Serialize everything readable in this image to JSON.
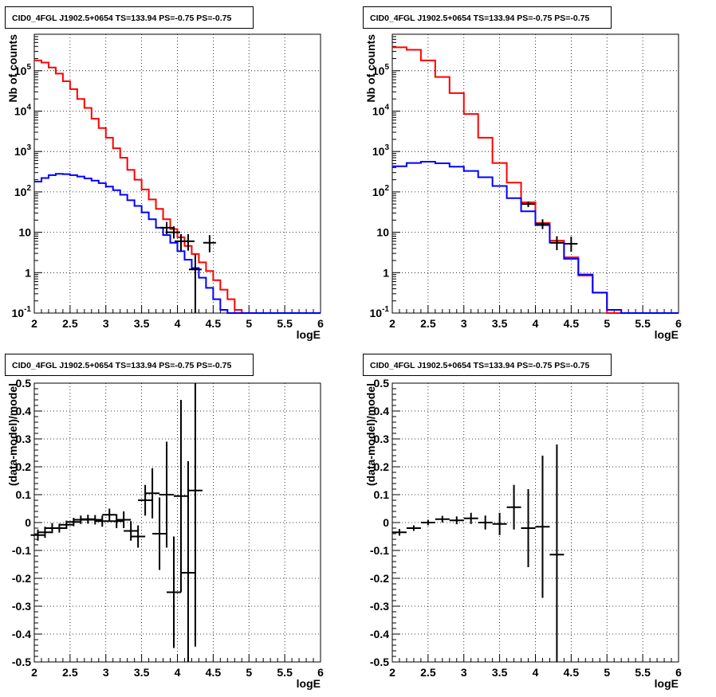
{
  "chart_data": [
    {
      "type": "histogram",
      "title": "CID0_4FGL J1902.5+0654 TS=133.94 PS=-0.75 PS=-0.75",
      "xlabel": "logE",
      "ylabel": "Nb of counts",
      "xlim": [
        2,
        6
      ],
      "ylim": [
        0.1,
        800000
      ],
      "yscale": "log",
      "grid": true,
      "x_ticks": [
        "2",
        "2.5",
        "3",
        "3.5",
        "4",
        "4.5",
        "5",
        "5.5",
        "6"
      ],
      "y_ticks": [
        "10^-1",
        "1",
        "10",
        "10^2",
        "10^3",
        "10^4",
        "10^5"
      ],
      "series": [
        {
          "color": "#ff0000",
          "bin_edges": [
            2.0,
            2.1,
            2.2,
            2.3,
            2.4,
            2.5,
            2.6,
            2.7,
            2.8,
            2.9,
            3.0,
            3.1,
            3.2,
            3.3,
            3.4,
            3.5,
            3.6,
            3.7,
            3.8,
            3.9,
            4.0,
            4.1,
            4.2,
            4.3,
            4.4,
            4.5,
            4.6,
            4.7,
            4.8,
            4.9,
            5.0,
            5.1,
            5.2,
            5.3,
            5.4,
            5.5,
            5.6,
            5.7,
            5.8,
            5.9,
            6.0
          ],
          "values": [
            180000,
            160000,
            120000,
            85000,
            55000,
            35000,
            20000,
            12000,
            6500,
            3800,
            2200,
            1200,
            700,
            350,
            200,
            115,
            65,
            38,
            21,
            12,
            7.5,
            4.6,
            2.9,
            1.8,
            1.1,
            0.65,
            0.38,
            0.22,
            0.12,
            0.1,
            0.1,
            0.1,
            0.1,
            0.1,
            0.1,
            0.1,
            0.1,
            0.1,
            0.1,
            0.1
          ]
        },
        {
          "color": "#0000ff",
          "bin_edges": [
            2.0,
            2.1,
            2.2,
            2.3,
            2.4,
            2.5,
            2.6,
            2.7,
            2.8,
            2.9,
            3.0,
            3.1,
            3.2,
            3.3,
            3.4,
            3.5,
            3.6,
            3.7,
            3.8,
            3.9,
            4.0,
            4.1,
            4.2,
            4.3,
            4.4,
            4.5,
            4.6,
            4.7,
            4.8,
            4.9,
            5.0,
            5.1,
            5.2,
            5.3,
            5.4,
            5.5,
            5.6,
            5.7,
            5.8,
            5.9,
            6.0
          ],
          "values": [
            180,
            220,
            260,
            280,
            275,
            260,
            240,
            215,
            190,
            165,
            135,
            110,
            85,
            62,
            45,
            31,
            21,
            13,
            8.5,
            5.5,
            3.4,
            2.1,
            1.3,
            0.75,
            0.42,
            0.22,
            0.12,
            0.1,
            0.1,
            0.1,
            0.1,
            0.1,
            0.1,
            0.1,
            0.1,
            0.1,
            0.1,
            0.1,
            0.1,
            0.1
          ]
        },
        {
          "color": "#000000",
          "style": "points",
          "points": [
            {
              "x": 3.85,
              "y": 13,
              "ylo": 9,
              "yhi": 18
            },
            {
              "x": 3.95,
              "y": 10,
              "ylo": 7,
              "yhi": 14
            },
            {
              "x": 4.05,
              "y": 6,
              "ylo": 3.5,
              "yhi": 9
            },
            {
              "x": 4.15,
              "y": 6,
              "ylo": 3.5,
              "yhi": 9
            },
            {
              "x": 4.25,
              "y": 1.2,
              "ylo": 0.1,
              "yhi": 2.8
            },
            {
              "x": 4.45,
              "y": 5.5,
              "ylo": 3.2,
              "yhi": 8.5
            }
          ]
        }
      ]
    },
    {
      "type": "histogram",
      "title": "CID0_4FGL J1902.5+0654 TS=133.94 PS=-0.75 PS=-0.75",
      "xlabel": "logE",
      "ylabel": "Nb of counts",
      "xlim": [
        2,
        6
      ],
      "ylim": [
        0.1,
        800000
      ],
      "yscale": "log",
      "grid": true,
      "x_ticks": [
        "2",
        "2.5",
        "3",
        "3.5",
        "4",
        "4.5",
        "5",
        "5.5",
        "6"
      ],
      "y_ticks": [
        "10^-1",
        "1",
        "10",
        "10^2",
        "10^3",
        "10^4",
        "10^5"
      ],
      "series": [
        {
          "color": "#ff0000",
          "bin_edges": [
            2.0,
            2.2,
            2.4,
            2.6,
            2.8,
            3.0,
            3.2,
            3.4,
            3.6,
            3.8,
            4.0,
            4.2,
            4.4,
            4.6,
            4.8,
            5.0,
            5.2,
            5.4,
            5.6,
            5.8,
            6.0
          ],
          "values": [
            380000,
            330000,
            180000,
            70000,
            28000,
            8500,
            2200,
            520,
            170,
            55,
            17,
            6.2,
            2.4,
            0.85,
            0.32,
            0.1,
            0.1,
            0.1,
            0.1,
            0.1
          ]
        },
        {
          "color": "#0000ff",
          "bin_edges": [
            2.0,
            2.2,
            2.4,
            2.6,
            2.8,
            3.0,
            3.2,
            3.4,
            3.6,
            3.8,
            4.0,
            4.2,
            4.4,
            4.6,
            4.8,
            5.0,
            5.2,
            5.4,
            5.6,
            5.8,
            6.0
          ],
          "values": [
            430,
            520,
            560,
            510,
            420,
            330,
            230,
            140,
            70,
            33,
            15,
            5.5,
            2.2,
            0.9,
            0.32,
            0.12,
            0.1,
            0.1,
            0.1,
            0.1
          ]
        },
        {
          "color": "#000000",
          "style": "points",
          "points": [
            {
              "x": 3.9,
              "y": 50,
              "ylo": 42,
              "yhi": 58
            },
            {
              "x": 4.1,
              "y": 16,
              "ylo": 12,
              "yhi": 21
            },
            {
              "x": 4.3,
              "y": 5.5,
              "ylo": 3.6,
              "yhi": 8
            },
            {
              "x": 4.5,
              "y": 5.2,
              "ylo": 3.3,
              "yhi": 7.8
            }
          ]
        }
      ]
    },
    {
      "type": "scatter",
      "title": "CID0_4FGL J1902.5+0654 TS=133.94 PS=-0.75 PS=-0.75",
      "xlabel": "logE",
      "ylabel": "(data-model)/model",
      "xlim": [
        2,
        6
      ],
      "ylim": [
        -0.5,
        0.5
      ],
      "yscale": "linear",
      "grid": true,
      "x_ticks": [
        "2",
        "2.5",
        "3",
        "3.5",
        "4",
        "4.5",
        "5",
        "5.5",
        "6"
      ],
      "y_ticks": [
        "-0.5",
        "-0.4",
        "-0.3",
        "-0.2",
        "-0.1",
        "0",
        "0.1",
        "0.2",
        "0.3",
        "0.4",
        "0.5"
      ],
      "series": [
        {
          "color": "#000000",
          "points": [
            {
              "x": 2.05,
              "y": -0.045,
              "err": 0.02
            },
            {
              "x": 2.15,
              "y": -0.035,
              "err": 0.02
            },
            {
              "x": 2.25,
              "y": -0.02,
              "err": 0.018
            },
            {
              "x": 2.35,
              "y": -0.02,
              "err": 0.016
            },
            {
              "x": 2.45,
              "y": -0.008,
              "err": 0.015
            },
            {
              "x": 2.55,
              "y": 0.002,
              "err": 0.015
            },
            {
              "x": 2.65,
              "y": 0.01,
              "err": 0.015
            },
            {
              "x": 2.75,
              "y": 0.012,
              "err": 0.016
            },
            {
              "x": 2.85,
              "y": 0.01,
              "err": 0.017
            },
            {
              "x": 2.95,
              "y": 0.005,
              "err": 0.02
            },
            {
              "x": 3.05,
              "y": 0.028,
              "err": 0.022
            },
            {
              "x": 3.15,
              "y": 0.005,
              "err": 0.025
            },
            {
              "x": 3.25,
              "y": 0.01,
              "err": 0.03
            },
            {
              "x": 3.35,
              "y": -0.03,
              "err": 0.035
            },
            {
              "x": 3.45,
              "y": -0.05,
              "err": 0.04
            },
            {
              "x": 3.55,
              "y": 0.08,
              "err": 0.055
            },
            {
              "x": 3.65,
              "y": 0.105,
              "err": 0.09
            },
            {
              "x": 3.75,
              "y": -0.04,
              "err": 0.13
            },
            {
              "x": 3.85,
              "y": 0.1,
              "err": 0.19
            },
            {
              "x": 3.95,
              "y": -0.25,
              "err": 0.2
            },
            {
              "x": 4.05,
              "y": 0.095,
              "err": 0.345
            },
            {
              "x": 4.15,
              "y": -0.18,
              "err": 0.4
            },
            {
              "x": 4.25,
              "y": 0.115,
              "err": 0.56
            }
          ]
        }
      ]
    },
    {
      "type": "scatter",
      "title": "CID0_4FGL J1902.5+0654 TS=133.94 PS=-0.75 PS=-0.75",
      "xlabel": "logE",
      "ylabel": "(data-model)/model",
      "xlim": [
        2,
        6
      ],
      "ylim": [
        -0.5,
        0.5
      ],
      "yscale": "linear",
      "grid": true,
      "x_ticks": [
        "2",
        "2.5",
        "3",
        "3.5",
        "4",
        "4.5",
        "5",
        "5.5",
        "6"
      ],
      "y_ticks": [
        "-0.5",
        "-0.4",
        "-0.3",
        "-0.2",
        "-0.1",
        "0",
        "0.1",
        "0.2",
        "0.3",
        "0.4",
        "0.5"
      ],
      "series": [
        {
          "color": "#000000",
          "points": [
            {
              "x": 2.1,
              "y": -0.035,
              "err": 0.012
            },
            {
              "x": 2.3,
              "y": -0.02,
              "err": 0.01
            },
            {
              "x": 2.5,
              "y": 0.0,
              "err": 0.01
            },
            {
              "x": 2.7,
              "y": 0.012,
              "err": 0.012
            },
            {
              "x": 2.9,
              "y": 0.008,
              "err": 0.014
            },
            {
              "x": 3.1,
              "y": 0.015,
              "err": 0.02
            },
            {
              "x": 3.3,
              "y": 0.0,
              "err": 0.025
            },
            {
              "x": 3.5,
              "y": -0.005,
              "err": 0.04
            },
            {
              "x": 3.7,
              "y": 0.055,
              "err": 0.08
            },
            {
              "x": 3.9,
              "y": -0.02,
              "err": 0.14
            },
            {
              "x": 4.1,
              "y": -0.015,
              "err": 0.255
            },
            {
              "x": 4.3,
              "y": -0.115,
              "err": 0.395
            }
          ]
        }
      ]
    }
  ]
}
